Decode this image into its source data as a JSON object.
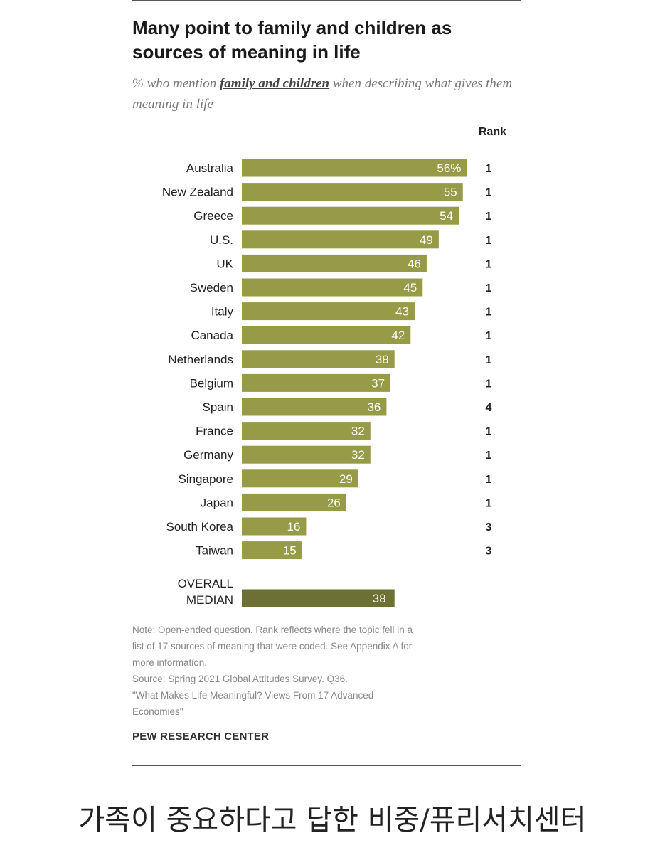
{
  "chart_data": {
    "type": "bar",
    "orientation": "horizontal",
    "title": "Many point to family and children as sources of meaning in life",
    "subtitle_prefix": "% who mention",
    "subtitle_emphasis": "family and children",
    "subtitle_suffix": "when describing what gives them meaning in life",
    "rank_header": "Rank",
    "categories": [
      "Australia",
      "New Zealand",
      "Greece",
      "U.S.",
      "UK",
      "Sweden",
      "Italy",
      "Canada",
      "Netherlands",
      "Belgium",
      "Spain",
      "France",
      "Germany",
      "Singapore",
      "Japan",
      "South Korea",
      "Taiwan"
    ],
    "values": [
      56,
      55,
      54,
      49,
      46,
      45,
      43,
      42,
      38,
      37,
      36,
      32,
      32,
      29,
      26,
      16,
      15
    ],
    "value_labels": [
      "56%",
      "55",
      "54",
      "49",
      "46",
      "45",
      "43",
      "42",
      "38",
      "37",
      "36",
      "32",
      "32",
      "29",
      "26",
      "16",
      "15"
    ],
    "ranks": [
      "1",
      "1",
      "1",
      "1",
      "1",
      "1",
      "1",
      "1",
      "1",
      "1",
      "4",
      "1",
      "1",
      "1",
      "1",
      "3",
      "3"
    ],
    "median": {
      "label_line1": "OVERALL",
      "label_line2": "MEDIAN",
      "value": 38,
      "value_label": "38"
    },
    "bar_color": "#979a47",
    "median_color": "#6d6f35",
    "xlim": [
      0,
      100
    ]
  },
  "note": {
    "line1": "Note: Open-ended question. Rank reflects where the topic fell in a",
    "line2": "list of 17 sources of meaning that were coded. See Appendix A for",
    "line3": "more information.",
    "line4": "Source: Spring 2021 Global Attitudes Survey. Q36.",
    "line5": "\"What Makes Life Meaningful? Views From 17 Advanced",
    "line6": "Economies\""
  },
  "brand": "PEW RESEARCH CENTER",
  "caption": "가족이 중요하다고 답한 비중/퓨리서치센터"
}
